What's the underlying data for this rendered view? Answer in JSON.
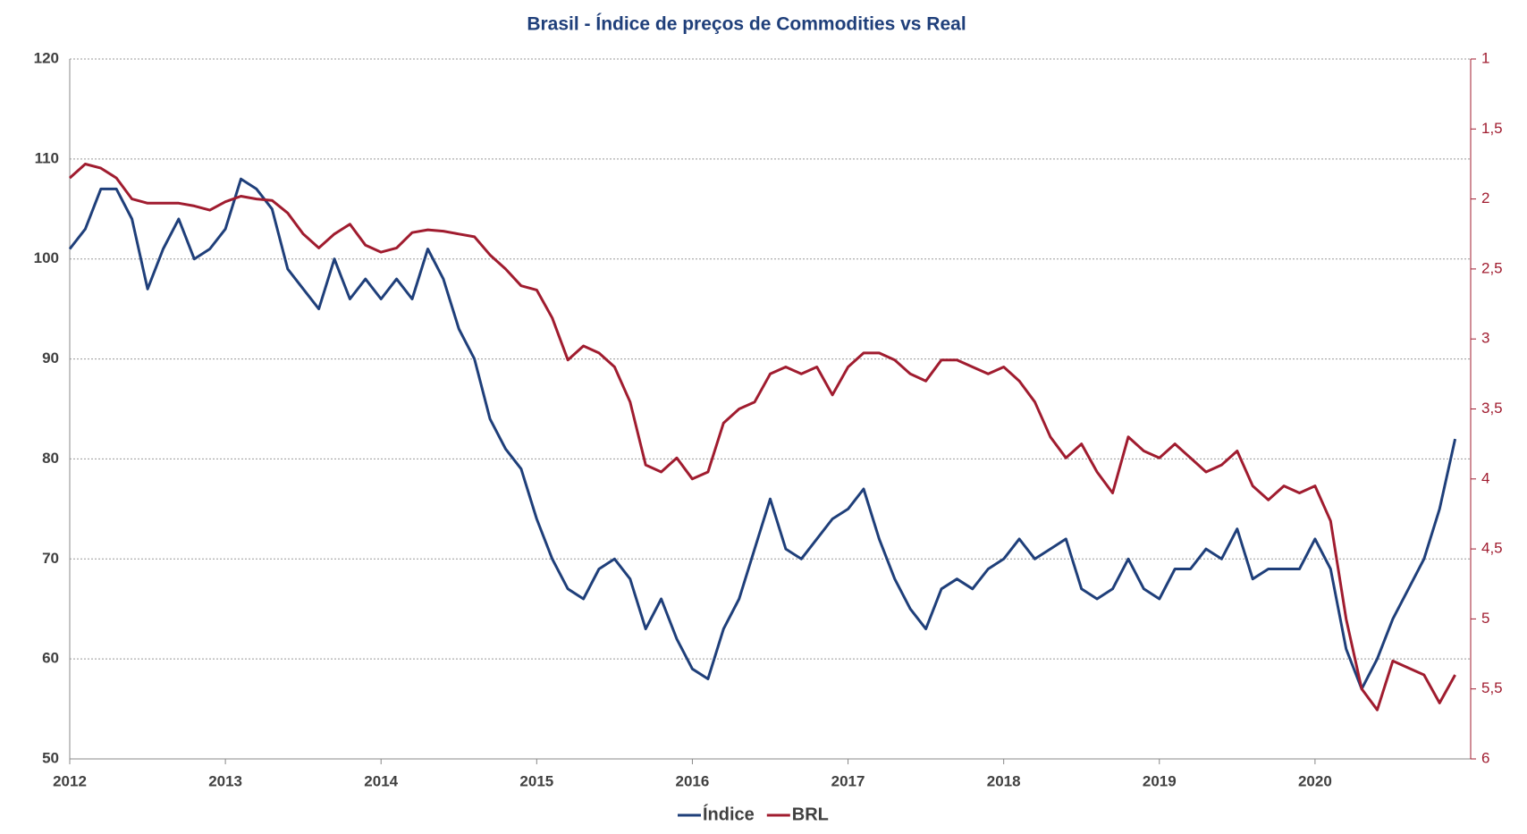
{
  "chart_data": {
    "type": "line",
    "title": "Brasil - Índice de preços de Commodities vs Real",
    "x": [
      2012.0,
      2012.1,
      2012.2,
      2012.3,
      2012.4,
      2012.5,
      2012.6,
      2012.7,
      2012.8,
      2012.9,
      2013.0,
      2013.1,
      2013.2,
      2013.3,
      2013.4,
      2013.5,
      2013.6,
      2013.7,
      2013.8,
      2013.9,
      2014.0,
      2014.1,
      2014.2,
      2014.3,
      2014.4,
      2014.5,
      2014.6,
      2014.7,
      2014.8,
      2014.9,
      2015.0,
      2015.1,
      2015.2,
      2015.3,
      2015.4,
      2015.5,
      2015.6,
      2015.7,
      2015.8,
      2015.9,
      2016.0,
      2016.1,
      2016.2,
      2016.3,
      2016.4,
      2016.5,
      2016.6,
      2016.7,
      2016.8,
      2016.9,
      2017.0,
      2017.1,
      2017.2,
      2017.3,
      2017.4,
      2017.5,
      2017.6,
      2017.7,
      2017.8,
      2017.9,
      2018.0,
      2018.1,
      2018.2,
      2018.3,
      2018.4,
      2018.5,
      2018.6,
      2018.7,
      2018.8,
      2018.9,
      2019.0,
      2019.1,
      2019.2,
      2019.3,
      2019.4,
      2019.5,
      2019.6,
      2019.7,
      2019.8,
      2019.9,
      2020.0,
      2020.1,
      2020.2,
      2020.3,
      2020.4,
      2020.5,
      2020.6,
      2020.7,
      2020.8,
      2020.9
    ],
    "series": [
      {
        "name": "Índice",
        "color": "#1f3f7a",
        "values": [
          101,
          103,
          107,
          107,
          104,
          97,
          101,
          104,
          100,
          101,
          103,
          108,
          107,
          105,
          99,
          97,
          95,
          100,
          96,
          98,
          96,
          98,
          96,
          101,
          98,
          93,
          90,
          84,
          81,
          79,
          74,
          70,
          67,
          66,
          69,
          70,
          68,
          63,
          66,
          62,
          59,
          58,
          63,
          66,
          71,
          76,
          71,
          70,
          72,
          74,
          75,
          77,
          72,
          68,
          65,
          63,
          67,
          68,
          67,
          69,
          70,
          72,
          70,
          71,
          72,
          67,
          66,
          67,
          70,
          67,
          66,
          69,
          69,
          71,
          70,
          73,
          68,
          69,
          69,
          69,
          72,
          69,
          61,
          57,
          60,
          64,
          67,
          70,
          75,
          82
        ]
      },
      {
        "name": "BRL",
        "color": "#a01c2f",
        "axis": "y2",
        "values": [
          1.85,
          1.75,
          1.78,
          1.85,
          2.0,
          2.03,
          2.03,
          2.03,
          2.05,
          2.08,
          2.02,
          1.98,
          2.0,
          2.01,
          2.1,
          2.25,
          2.35,
          2.25,
          2.18,
          2.33,
          2.38,
          2.35,
          2.24,
          2.22,
          2.23,
          2.25,
          2.27,
          2.4,
          2.5,
          2.62,
          2.65,
          2.85,
          3.15,
          3.05,
          3.1,
          3.2,
          3.45,
          3.9,
          3.95,
          3.85,
          4.0,
          3.95,
          3.6,
          3.5,
          3.45,
          3.25,
          3.2,
          3.25,
          3.2,
          3.4,
          3.2,
          3.1,
          3.1,
          3.15,
          3.25,
          3.3,
          3.15,
          3.15,
          3.2,
          3.25,
          3.2,
          3.3,
          3.45,
          3.7,
          3.85,
          3.75,
          3.95,
          4.1,
          3.7,
          3.8,
          3.85,
          3.75,
          3.85,
          3.95,
          3.9,
          3.8,
          4.05,
          4.15,
          4.05,
          4.1,
          4.05,
          4.3,
          5.0,
          5.5,
          5.65,
          5.3,
          5.35,
          5.4,
          5.6,
          5.4
        ]
      }
    ],
    "xlim": [
      2012,
      2021
    ],
    "xticks": [
      2012,
      2013,
      2014,
      2015,
      2016,
      2017,
      2018,
      2019,
      2020
    ],
    "ylim": [
      50,
      120
    ],
    "yticks": [
      50,
      60,
      70,
      80,
      90,
      100,
      110,
      120
    ],
    "y2lim": [
      6,
      1
    ],
    "y2ticks": [
      1,
      {
        "value": 1.5,
        "label": "1,5"
      },
      2,
      {
        "value": 2.5,
        "label": "2,5"
      },
      3,
      {
        "value": 3.5,
        "label": "3,5"
      },
      4,
      {
        "value": 4.5,
        "label": "4,5"
      },
      5,
      {
        "value": 5.5,
        "label": "5,5"
      },
      6
    ],
    "grid": true,
    "legend": "bottom"
  }
}
